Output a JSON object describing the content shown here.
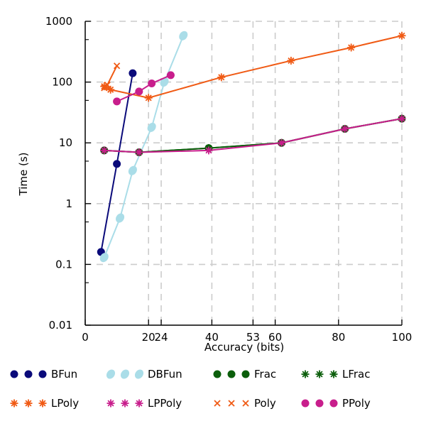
{
  "chart_data": {
    "type": "line",
    "xlabel": "Accuracy (bits)",
    "ylabel": "Time (s)",
    "xlim": [
      0,
      100
    ],
    "ylim": [
      0.01,
      1000
    ],
    "yscale": "log",
    "grid": "dashed",
    "x_ticks": [
      {
        "value": 0,
        "label": "0"
      },
      {
        "value": 20,
        "label": "20"
      },
      {
        "value": 24,
        "label": "24"
      },
      {
        "value": 40,
        "label": "40"
      },
      {
        "value": 53,
        "label": "53"
      },
      {
        "value": 60,
        "label": "60"
      },
      {
        "value": 80,
        "label": "80"
      },
      {
        "value": 100,
        "label": "100"
      }
    ],
    "x_grid": [
      20,
      24,
      40,
      53,
      60,
      80,
      100
    ],
    "y_ticks": [
      {
        "value": 0.01,
        "label": "0.01"
      },
      {
        "value": 0.1,
        "label": "0.1"
      },
      {
        "value": 1,
        "label": "1"
      },
      {
        "value": 10,
        "label": "10"
      },
      {
        "value": 100,
        "label": "100"
      },
      {
        "value": 1000,
        "label": "1000"
      }
    ],
    "legend_position": "bottom",
    "series": [
      {
        "name": "BFun",
        "color": "#0a0a7a",
        "marker": "circle",
        "points": [
          [
            5,
            0.16
          ],
          [
            10,
            4.5
          ],
          [
            15,
            140
          ]
        ]
      },
      {
        "name": "DBFun",
        "color": "#aadde8",
        "marker": "ellipse",
        "points": [
          [
            6,
            0.13
          ],
          [
            11,
            0.58
          ],
          [
            15,
            3.5
          ],
          [
            21,
            18
          ],
          [
            25,
            100
          ],
          [
            31,
            580
          ]
        ]
      },
      {
        "name": "Frac",
        "color": "#0b5e0b",
        "marker": "circle",
        "points": [
          [
            6,
            7.5
          ],
          [
            17,
            7
          ],
          [
            39,
            8.2
          ],
          [
            62,
            10
          ],
          [
            82,
            17
          ],
          [
            100,
            25
          ]
        ]
      },
      {
        "name": "LFrac",
        "color": "#0b5e0b",
        "marker": "star",
        "points": [
          [
            6,
            7.5
          ],
          [
            17,
            7
          ],
          [
            39,
            8.2
          ],
          [
            62,
            10
          ],
          [
            82,
            17
          ],
          [
            100,
            25
          ]
        ]
      },
      {
        "name": "LPoly",
        "color": "#f05a14",
        "marker": "star",
        "points": [
          [
            6,
            85
          ],
          [
            8,
            75
          ],
          [
            20,
            55
          ],
          [
            43,
            120
          ],
          [
            65,
            225
          ],
          [
            84,
            370
          ],
          [
            100,
            580
          ]
        ]
      },
      {
        "name": "LPPoly",
        "color": "#c81e8c",
        "marker": "star",
        "points": [
          [
            6,
            7.5
          ],
          [
            17,
            7
          ],
          [
            39,
            7.5
          ],
          [
            62,
            10
          ],
          [
            82,
            17
          ],
          [
            100,
            25
          ]
        ]
      },
      {
        "name": "Poly",
        "color": "#f05a14",
        "marker": "x",
        "points": [
          [
            6,
            80
          ],
          [
            7,
            90
          ],
          [
            10,
            185
          ]
        ]
      },
      {
        "name": "PPoly",
        "color": "#c81e8c",
        "marker": "circle",
        "points": [
          [
            10,
            48
          ],
          [
            17,
            70
          ],
          [
            21,
            95
          ],
          [
            27,
            130
          ]
        ]
      }
    ]
  }
}
